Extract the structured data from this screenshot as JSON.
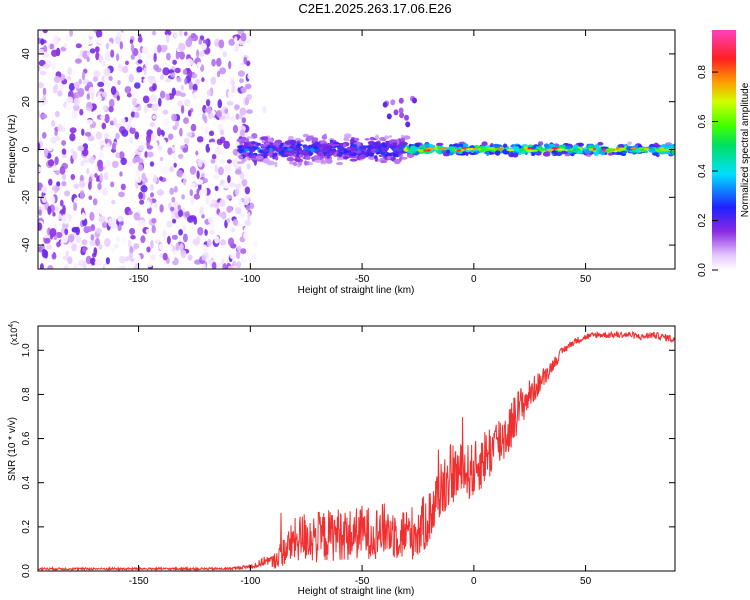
{
  "title": "C2E1.2025.263.17.06.E26",
  "chart_data": [
    {
      "type": "heatmap",
      "xlabel": "Height of straight line (km)",
      "ylabel": "Frequency (Hz)",
      "xlim": [
        -195,
        90
      ],
      "ylim": [
        -50,
        50
      ],
      "xticks": [
        -150,
        -100,
        -50,
        0,
        50
      ],
      "yticks": [
        -40,
        -20,
        0,
        20,
        40
      ],
      "colorbar": {
        "label": "Normalized spectral amplitude",
        "range": [
          0,
          0.97
        ],
        "ticks": [
          0.0,
          0.2,
          0.4,
          0.6,
          0.8
        ]
      },
      "noise_region": {
        "x": [
          -195,
          -100
        ],
        "y": [
          -50,
          50
        ],
        "amplitude": 0.04
      },
      "signal": {
        "center_freq": 0,
        "bands": [
          {
            "x": [
              -105,
              -30
            ],
            "spread": 8,
            "amplitude": 0.25
          },
          {
            "x": [
              -30,
              90
            ],
            "spread": 3,
            "amplitude": 0.55
          }
        ],
        "outlier_cluster": {
          "x": [
            -40,
            -25
          ],
          "y": [
            10,
            22
          ],
          "amplitude": 0.1
        }
      }
    },
    {
      "type": "line",
      "xlabel": "Height of straight line (km)",
      "ylabel": "SNR (10 * v/v)",
      "multiplier": "(x10",
      "multiplier_exp": "4",
      "multiplier_close": ")",
      "xlim": [
        -195,
        90
      ],
      "ylim": [
        0,
        1.11
      ],
      "xticks": [
        -150,
        -100,
        -50,
        0,
        50
      ],
      "yticks": [
        0.0,
        0.2,
        0.4,
        0.6,
        0.8,
        1.0
      ],
      "series": [
        {
          "name": "SNR",
          "color": "#f03030",
          "x": [
            -195,
            -160,
            -130,
            -110,
            -100,
            -96,
            -93,
            -90,
            -85,
            -80,
            -75,
            -70,
            -65,
            -60,
            -55,
            -50,
            -45,
            -40,
            -35,
            -30,
            -25,
            -20,
            -15,
            -10,
            -5,
            0,
            5,
            10,
            15,
            20,
            25,
            30,
            35,
            40,
            45,
            50,
            55,
            60,
            65,
            70,
            75,
            80,
            85,
            90
          ],
          "y": [
            0.01,
            0.01,
            0.01,
            0.01,
            0.02,
            0.03,
            0.05,
            0.04,
            0.09,
            0.14,
            0.16,
            0.15,
            0.16,
            0.17,
            0.16,
            0.18,
            0.17,
            0.19,
            0.17,
            0.17,
            0.18,
            0.24,
            0.37,
            0.44,
            0.45,
            0.45,
            0.52,
            0.57,
            0.63,
            0.73,
            0.8,
            0.86,
            0.93,
            1.0,
            1.04,
            1.06,
            1.07,
            1.07,
            1.07,
            1.07,
            1.06,
            1.07,
            1.06,
            1.05
          ],
          "noise": [
            0.005,
            0.005,
            0.005,
            0.005,
            0.01,
            0.02,
            0.02,
            0.03,
            0.07,
            0.1,
            0.12,
            0.12,
            0.12,
            0.12,
            0.12,
            0.12,
            0.12,
            0.12,
            0.12,
            0.12,
            0.13,
            0.13,
            0.14,
            0.14,
            0.13,
            0.13,
            0.13,
            0.13,
            0.12,
            0.1,
            0.07,
            0.05,
            0.03,
            0.02,
            0.015,
            0.015,
            0.015,
            0.015,
            0.015,
            0.015,
            0.015,
            0.015,
            0.015,
            0.02
          ]
        }
      ]
    }
  ]
}
